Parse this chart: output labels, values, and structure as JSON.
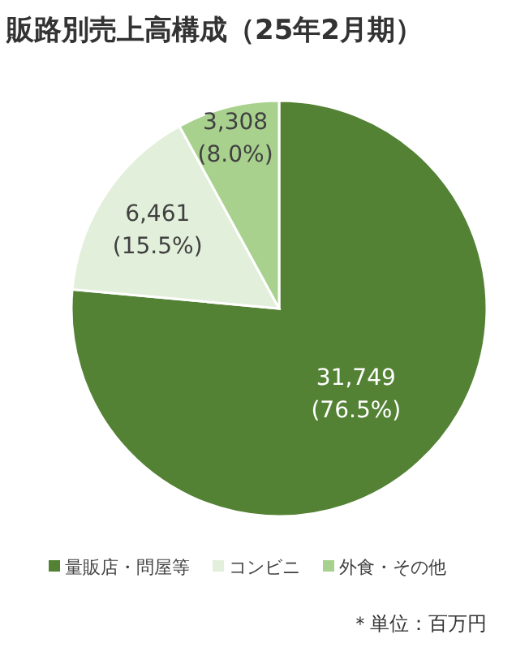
{
  "chart_data": {
    "type": "pie",
    "title": "販路別売上高構成（25年2月期）",
    "categories": [
      "量販店・問屋等",
      "コンビニ",
      "外食・その他"
    ],
    "values": [
      31749,
      6461,
      3308
    ],
    "colors": [
      "#548235",
      "#e2efda",
      "#a9d18e"
    ],
    "value_labels": [
      "31,749\n(76.5%)",
      "6,461\n(15.5%)",
      "3,308\n(8.0%)"
    ],
    "legend": "bottom",
    "annotations": [
      "＊単位：百万円"
    ]
  }
}
